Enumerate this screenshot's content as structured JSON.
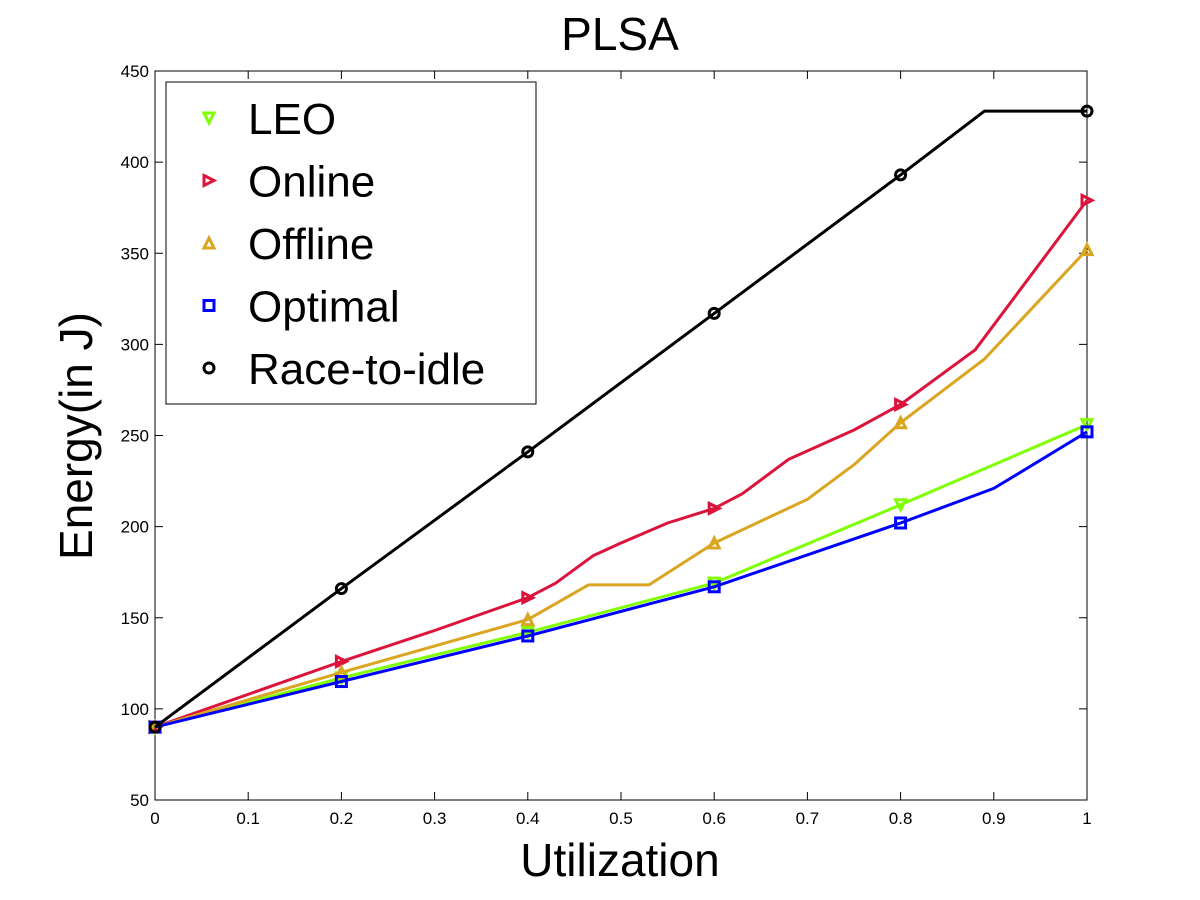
{
  "chart_data": {
    "type": "line",
    "title": "PLSA",
    "xlabel": "Utilization",
    "ylabel": "Energy(in J)",
    "xlim": [
      0,
      1
    ],
    "ylim": [
      50,
      450
    ],
    "xticks": [
      "0",
      "0.1",
      "0.2",
      "0.3",
      "0.4",
      "0.5",
      "0.6",
      "0.7",
      "0.8",
      "0.9",
      "1"
    ],
    "yticks": [
      "50",
      "100",
      "150",
      "200",
      "250",
      "300",
      "350",
      "400",
      "450"
    ],
    "grid": false,
    "legend_position": "top-left",
    "series": [
      {
        "name": "LEO",
        "color": "#7fff00",
        "marker": "triangle-down",
        "x": [
          0,
          0.2,
          0.4,
          0.6,
          0.8,
          1.0
        ],
        "y": [
          90,
          117,
          142,
          169,
          212,
          256
        ],
        "line_x": [
          0,
          0.2,
          0.4,
          0.6,
          0.8,
          1.0
        ],
        "line_y": [
          90,
          117,
          142,
          169,
          212,
          256
        ]
      },
      {
        "name": "Online",
        "color": "#dc143c",
        "marker": "triangle-right",
        "x": [
          0,
          0.2,
          0.4,
          0.6,
          0.8,
          1.0
        ],
        "y": [
          90,
          126,
          161,
          210,
          267,
          379
        ],
        "line_x": [
          0,
          0.2,
          0.3,
          0.4,
          0.43,
          0.47,
          0.5,
          0.55,
          0.6,
          0.63,
          0.68,
          0.75,
          0.8,
          0.88,
          1.0
        ],
        "line_y": [
          90,
          126,
          143,
          161,
          169,
          184,
          191,
          202,
          210,
          218,
          237,
          253,
          267,
          297,
          379
        ]
      },
      {
        "name": "Offline",
        "color": "#daa520",
        "marker": "triangle-up",
        "x": [
          0,
          0.2,
          0.4,
          0.6,
          0.8,
          1.0
        ],
        "y": [
          90,
          120,
          149,
          191,
          257,
          352
        ],
        "line_x": [
          0,
          0.2,
          0.4,
          0.465,
          0.53,
          0.6,
          0.7,
          0.75,
          0.8,
          0.89,
          1.0
        ],
        "line_y": [
          90,
          120,
          149,
          168,
          168,
          191,
          215,
          234,
          257,
          292,
          352
        ]
      },
      {
        "name": "Optimal",
        "color": "#0000ff",
        "marker": "square",
        "x": [
          0,
          0.2,
          0.4,
          0.6,
          0.8,
          1.0
        ],
        "y": [
          90,
          115,
          140,
          167,
          202,
          252
        ],
        "line_x": [
          0,
          0.2,
          0.4,
          0.6,
          0.8,
          0.9,
          1.0
        ],
        "line_y": [
          90,
          115,
          140,
          167,
          202,
          221,
          252
        ]
      },
      {
        "name": "Race-to-idle",
        "color": "#000000",
        "marker": "circle",
        "x": [
          0,
          0.2,
          0.4,
          0.6,
          0.8,
          1.0
        ],
        "y": [
          90,
          166,
          241,
          317,
          393,
          428
        ],
        "line_x": [
          0,
          0.2,
          0.4,
          0.6,
          0.8,
          0.89,
          1.0
        ],
        "line_y": [
          90,
          166,
          241,
          317,
          393,
          428,
          428
        ]
      }
    ]
  }
}
